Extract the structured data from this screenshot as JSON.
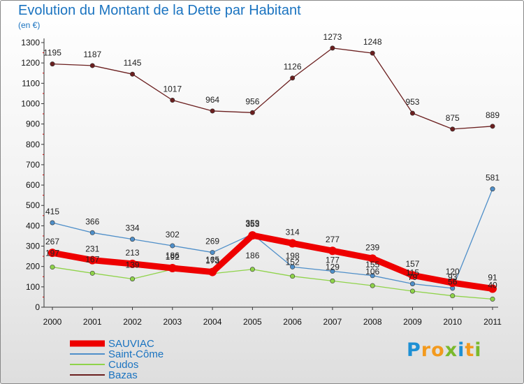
{
  "title": "Evolution du Montant de la Dette par Habitant",
  "unit_label": "(en €)",
  "logo": {
    "letters": [
      "P",
      "r",
      "o",
      "x",
      "i",
      "t",
      "i"
    ],
    "colors": [
      "#1e90d4",
      "#f39a1e",
      "#f39a1e",
      "#7ab92c",
      "#1e90d4",
      "#f39a1e",
      "#7ab92c"
    ]
  },
  "chart_data": {
    "type": "line",
    "x": [
      "2000",
      "2001",
      "2002",
      "2003",
      "2004",
      "2005",
      "2006",
      "2007",
      "2008",
      "2009",
      "2010",
      "2011"
    ],
    "ylim": [
      0,
      1300
    ],
    "yticks": [
      0,
      100,
      200,
      300,
      400,
      500,
      600,
      700,
      800,
      900,
      1000,
      1100,
      1200,
      1300
    ],
    "grid": false,
    "legend_position": "bottom-left",
    "series": [
      {
        "name": "SAUVIAC",
        "color": "#ee0000",
        "values": [
          267,
          231,
          213,
          192,
          173,
          353,
          314,
          277,
          239,
          157,
          120,
          91
        ]
      },
      {
        "name": "Saint-Côme",
        "color": "#4f8fc9",
        "values": [
          415,
          366,
          334,
          302,
          269,
          359,
          198,
          177,
          155,
          115,
          93,
          581
        ]
      },
      {
        "name": "Cudos",
        "color": "#8fd34a",
        "values": [
          197,
          167,
          139,
          186,
          165,
          186,
          152,
          129,
          106,
          79,
          56,
          40
        ]
      },
      {
        "name": "Bazas",
        "color": "#6b1f1f",
        "values": [
          1195,
          1187,
          1145,
          1017,
          964,
          956,
          1126,
          1273,
          1248,
          953,
          875,
          889
        ]
      }
    ]
  }
}
